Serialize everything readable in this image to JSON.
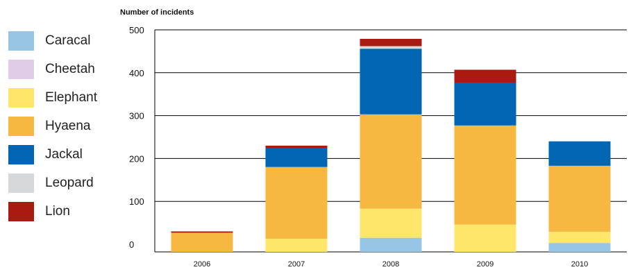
{
  "chart_data": {
    "type": "bar",
    "stacked": true,
    "title": "",
    "xlabel": "",
    "ylabel": "Number of incidents",
    "ylim": [
      0,
      500
    ],
    "yticks": [
      0,
      100,
      200,
      300,
      400,
      500
    ],
    "grid": true,
    "legend_position": "left",
    "categories": [
      "2006",
      "2007",
      "2008",
      "2009",
      "2010"
    ],
    "series": [
      {
        "name": "Caracal",
        "color": "#98c5e6",
        "values": [
          0,
          0,
          15,
          0,
          3
        ]
      },
      {
        "name": "Cheetah",
        "color": "#e0cce6",
        "values": [
          0,
          0,
          0,
          0,
          0
        ]
      },
      {
        "name": "Elephant",
        "color": "#fde66a",
        "values": [
          0,
          13,
          68,
          46,
          26
        ]
      },
      {
        "name": "Hyaena",
        "color": "#f7b841",
        "values": [
          27,
          167,
          220,
          231,
          154
        ]
      },
      {
        "name": "Jackal",
        "color": "#0066b3",
        "values": [
          0,
          45,
          153,
          100,
          57
        ]
      },
      {
        "name": "Leopard",
        "color": "#d5d9da",
        "values": [
          0,
          0,
          6,
          0,
          0
        ]
      },
      {
        "name": "Lion",
        "color": "#a71b10",
        "values": [
          3,
          5,
          17,
          30,
          0
        ]
      }
    ]
  }
}
